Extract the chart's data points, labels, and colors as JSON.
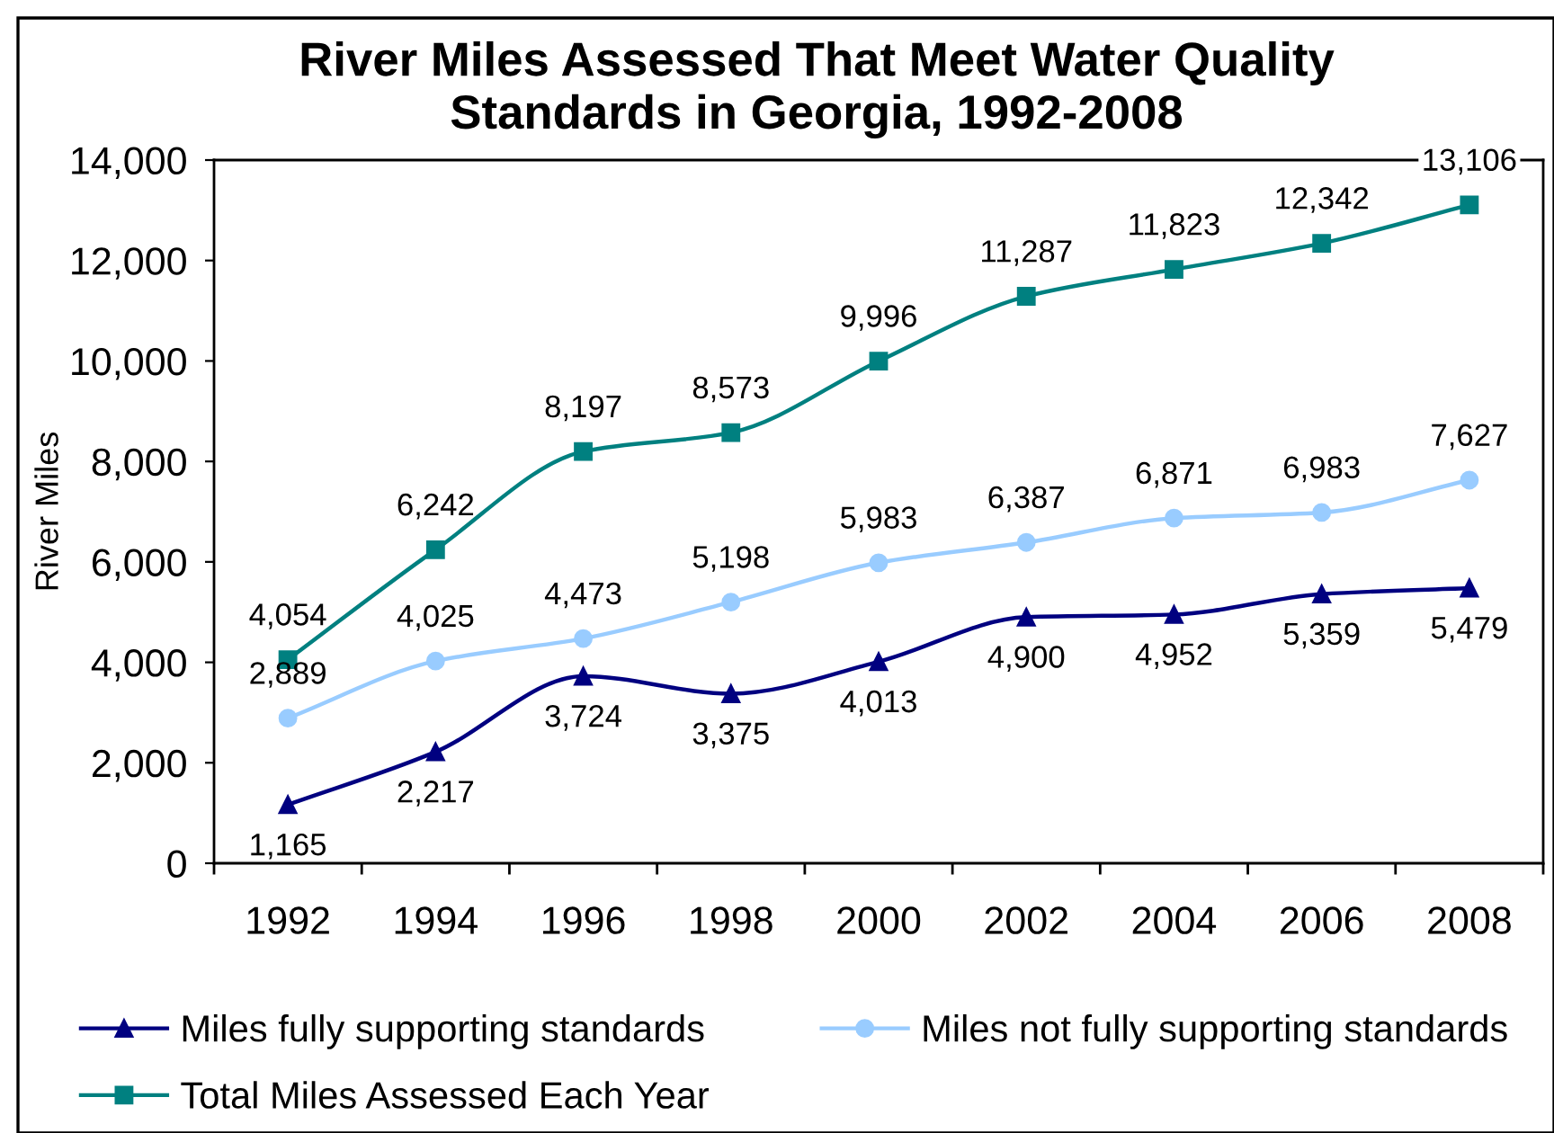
{
  "chart_data": {
    "type": "line",
    "title": "River Miles Assessed That Meet Water Quality\nStandards in Georgia, 1992-2008",
    "ylabel": "River Miles",
    "categories": [
      "1992",
      "1994",
      "1996",
      "1998",
      "2000",
      "2002",
      "2004",
      "2006",
      "2008"
    ],
    "ylim": [
      0,
      14000
    ],
    "yticks": [
      0,
      {
        "value": 2000,
        "label": "2,000"
      },
      {
        "value": 4000,
        "label": "4,000"
      },
      {
        "value": 6000,
        "label": "6,000"
      },
      {
        "value": 8000,
        "label": "8,000"
      },
      {
        "value": 10000,
        "label": "10,000"
      },
      {
        "value": 12000,
        "label": "12,000"
      },
      {
        "value": 14000,
        "label": "14,000"
      }
    ],
    "legend": "bottom",
    "line_style": "solid",
    "series": [
      {
        "name": "Miles fully supporting standards",
        "color": "#000080",
        "marker": "triangle",
        "values": [
          1165,
          2217,
          3724,
          3375,
          4013,
          4900,
          4952,
          5359,
          5479
        ],
        "value_labels": [
          "1,165",
          "2,217",
          "3,724",
          "3,375",
          "4,013",
          "4,900",
          "4,952",
          "5,359",
          "5,479"
        ]
      },
      {
        "name": "Miles not fully supporting standards",
        "color": "#99ccff",
        "marker": "circle",
        "values": [
          2889,
          4025,
          4473,
          5198,
          5983,
          6387,
          6871,
          6983,
          7627
        ],
        "value_labels": [
          "2,889",
          "4,025",
          "4,473",
          "5,198",
          "5,983",
          "6,387",
          "6,871",
          "6,983",
          "7,627"
        ]
      },
      {
        "name": "Total Miles Assessed Each Year",
        "color": "#008080",
        "marker": "square",
        "values": [
          4054,
          6242,
          8197,
          8573,
          9996,
          11287,
          11823,
          12342,
          13106
        ],
        "value_labels": [
          "4,054",
          "6,242",
          "8,197",
          "8,573",
          "9,996",
          "11,287",
          "11,823",
          "12,342",
          "13,106"
        ]
      }
    ]
  }
}
